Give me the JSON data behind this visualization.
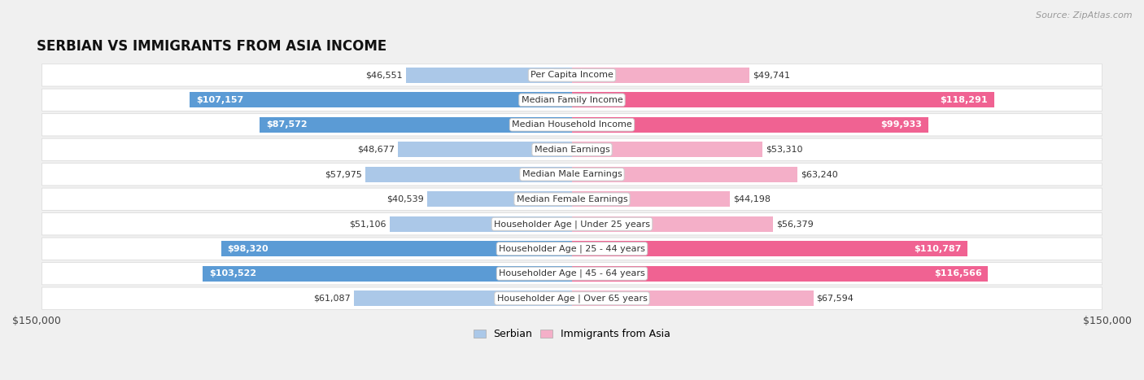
{
  "title": "SERBIAN VS IMMIGRANTS FROM ASIA INCOME",
  "source": "Source: ZipAtlas.com",
  "categories": [
    "Per Capita Income",
    "Median Family Income",
    "Median Household Income",
    "Median Earnings",
    "Median Male Earnings",
    "Median Female Earnings",
    "Householder Age | Under 25 years",
    "Householder Age | 25 - 44 years",
    "Householder Age | 45 - 64 years",
    "Householder Age | Over 65 years"
  ],
  "serbian_values": [
    46551,
    107157,
    87572,
    48677,
    57975,
    40539,
    51106,
    98320,
    103522,
    61087
  ],
  "asian_values": [
    49741,
    118291,
    99933,
    53310,
    63240,
    44198,
    56379,
    110787,
    116566,
    67594
  ],
  "max_value": 150000,
  "serbian_color_light": "#abc8e8",
  "serbian_color_dark": "#5b9bd5",
  "asian_color_light": "#f4afc8",
  "asian_color_dark": "#f06292",
  "background_color": "#f0f0f0",
  "row_bg_color": "#ffffff",
  "bar_height": 0.62,
  "threshold_for_dark_label": 80000,
  "legend_serbian": "Serbian",
  "legend_asian": "Immigrants from Asia"
}
